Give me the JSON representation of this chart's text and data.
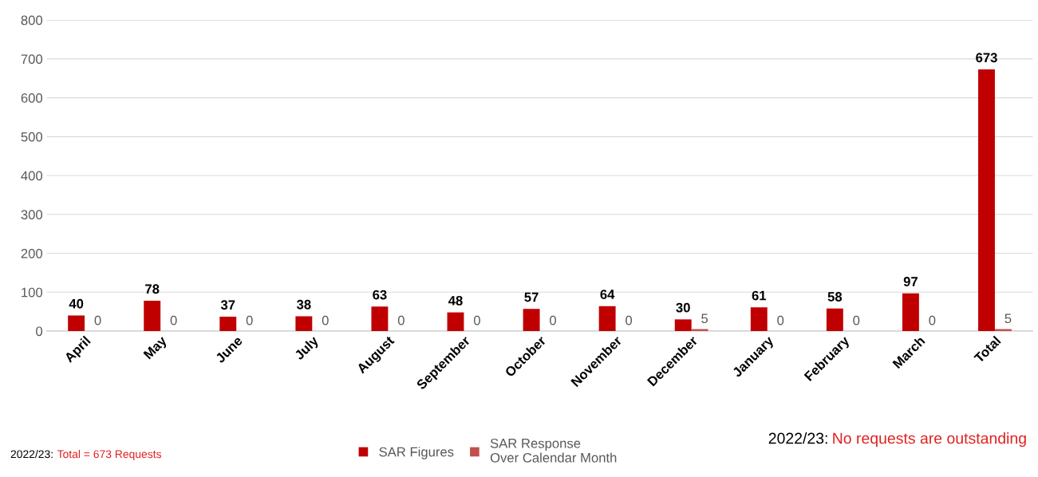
{
  "chart_data": {
    "type": "bar",
    "categories": [
      "April",
      "May",
      "June",
      "July",
      "August",
      "September",
      "October",
      "November",
      "December",
      "January",
      "February",
      "March",
      "Total"
    ],
    "series": [
      {
        "name": "SAR Figures",
        "color": "#c00000",
        "values": [
          40,
          78,
          37,
          38,
          63,
          48,
          57,
          64,
          30,
          61,
          58,
          97,
          673
        ]
      },
      {
        "name": "SAR Response\nOver Calendar Month",
        "color": "#c0504d",
        "values": [
          0,
          0,
          0,
          0,
          0,
          0,
          0,
          0,
          5,
          0,
          0,
          0,
          5
        ]
      }
    ],
    "ylim": [
      0,
      800
    ],
    "yticks": [
      0,
      100,
      200,
      300,
      400,
      500,
      600,
      700,
      800
    ],
    "grid": "y",
    "legend": "bottom",
    "data_labels": true,
    "annotations": [
      "2022/23:",
      "Total = 673 Requests",
      "2022/23:",
      "No requests are outstanding"
    ]
  }
}
